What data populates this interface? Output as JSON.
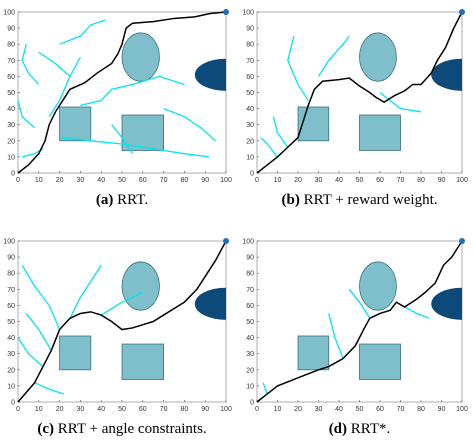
{
  "obstacles": {
    "ellipse": {
      "cx": 59,
      "cy": 72,
      "rx": 9,
      "ry": 15
    },
    "rects": [
      {
        "x": [
          20,
          35
        ],
        "y": [
          20,
          41
        ]
      },
      {
        "x": [
          50,
          70
        ],
        "y": [
          14,
          36
        ]
      }
    ],
    "half_disk": {
      "cx": 100,
      "cy": 61,
      "rx": 15,
      "ry": 10
    }
  },
  "chart_data": [
    {
      "type": "line",
      "tag": "(a)",
      "caption": "RRT.",
      "xlim": [
        0,
        100
      ],
      "ylim": [
        0,
        100
      ],
      "xticks": [
        0,
        10,
        20,
        30,
        40,
        50,
        60,
        70,
        80,
        90,
        100
      ],
      "yticks": [
        0,
        10,
        20,
        30,
        40,
        50,
        60,
        70,
        80,
        90,
        100
      ],
      "path": {
        "color": "#000000",
        "x": [
          0,
          5,
          10,
          13,
          15,
          18,
          22,
          25,
          32,
          38,
          45,
          48,
          50,
          52,
          55,
          65,
          75,
          85,
          92,
          100
        ],
        "y": [
          0,
          5,
          12,
          20,
          30,
          38,
          46,
          52,
          56,
          62,
          68,
          74,
          80,
          90,
          93,
          94,
          96,
          97,
          99,
          100
        ]
      },
      "tree": {
        "color": "#00e5ee",
        "branches": [
          {
            "x": [
              10,
              5,
              2,
              4
            ],
            "y": [
              55,
              62,
              70,
              80
            ]
          },
          {
            "x": [
              15,
              20,
              25,
              30
            ],
            "y": [
              35,
              45,
              60,
              72
            ]
          },
          {
            "x": [
              20,
              30,
              35,
              42
            ],
            "y": [
              80,
              85,
              92,
              95
            ]
          },
          {
            "x": [
              8,
              2,
              0
            ],
            "y": [
              28,
              35,
              45
            ]
          },
          {
            "x": [
              20,
              35,
              50,
              65,
              80,
              92
            ],
            "y": [
              22,
              20,
              18,
              15,
              12,
              10
            ]
          },
          {
            "x": [
              30,
              40,
              45,
              55,
              68,
              80
            ],
            "y": [
              42,
              45,
              52,
              55,
              60,
              55
            ]
          },
          {
            "x": [
              12,
              8,
              2
            ],
            "y": [
              15,
              12,
              10
            ]
          },
          {
            "x": [
              70,
              80,
              88,
              95
            ],
            "y": [
              40,
              35,
              28,
              20
            ]
          },
          {
            "x": [
              45,
              50,
              55
            ],
            "y": [
              30,
              22,
              12
            ]
          },
          {
            "x": [
              25,
              18,
              10
            ],
            "y": [
              60,
              68,
              75
            ]
          }
        ]
      }
    },
    {
      "type": "line",
      "tag": "(b)",
      "caption": "RRT + reward weight.",
      "xlim": [
        0,
        100
      ],
      "ylim": [
        0,
        100
      ],
      "xticks": [
        0,
        10,
        20,
        30,
        40,
        50,
        60,
        70,
        80,
        90,
        100
      ],
      "yticks": [
        0,
        10,
        20,
        30,
        40,
        50,
        60,
        70,
        80,
        90,
        100
      ],
      "path": {
        "color": "#000000",
        "x": [
          0,
          5,
          10,
          15,
          20,
          22,
          25,
          28,
          32,
          40,
          45,
          50,
          55,
          58,
          62,
          67,
          72,
          76,
          80,
          85,
          88,
          92,
          96,
          100
        ],
        "y": [
          0,
          5,
          10,
          16,
          22,
          30,
          42,
          52,
          57,
          58,
          59,
          54,
          50,
          47,
          44,
          48,
          51,
          55,
          55,
          62,
          70,
          78,
          90,
          100
        ]
      },
      "tree": {
        "color": "#00e5ee",
        "branches": [
          {
            "x": [
              25,
              20,
              15,
              18
            ],
            "y": [
              45,
              55,
              70,
              85
            ]
          },
          {
            "x": [
              30,
              35,
              42,
              45
            ],
            "y": [
              60,
              70,
              80,
              85
            ]
          },
          {
            "x": [
              10,
              5,
              2
            ],
            "y": [
              10,
              18,
              22
            ]
          },
          {
            "x": [
              60,
              70,
              80
            ],
            "y": [
              50,
              40,
              38
            ]
          },
          {
            "x": [
              15,
              10,
              8
            ],
            "y": [
              16,
              25,
              35
            ]
          }
        ]
      }
    },
    {
      "type": "line",
      "tag": "(c)",
      "caption": "RRT + angle constraints.",
      "xlim": [
        0,
        100
      ],
      "ylim": [
        0,
        100
      ],
      "xticks": [
        0,
        10,
        20,
        30,
        40,
        50,
        60,
        70,
        80,
        90,
        100
      ],
      "yticks": [
        0,
        10,
        20,
        30,
        40,
        50,
        60,
        70,
        80,
        90,
        100
      ],
      "path": {
        "color": "#000000",
        "x": [
          0,
          4,
          8,
          12,
          16,
          20,
          25,
          30,
          35,
          40,
          45,
          50,
          55,
          60,
          65,
          70,
          75,
          80,
          86,
          90,
          95,
          100
        ],
        "y": [
          0,
          6,
          12,
          22,
          32,
          45,
          52,
          55,
          56,
          54,
          50,
          45,
          46,
          48,
          50,
          54,
          58,
          62,
          70,
          78,
          88,
          100
        ]
      },
      "tree": {
        "color": "#00e5ee",
        "branches": [
          {
            "x": [
              20,
              15,
              8,
              2
            ],
            "y": [
              45,
              60,
              72,
              85
            ]
          },
          {
            "x": [
              25,
              30,
              35,
              40
            ],
            "y": [
              52,
              65,
              75,
              85
            ]
          },
          {
            "x": [
              12,
              5,
              0
            ],
            "y": [
              22,
              30,
              40
            ]
          },
          {
            "x": [
              8,
              15,
              22
            ],
            "y": [
              12,
              8,
              5
            ]
          },
          {
            "x": [
              40,
              50,
              60
            ],
            "y": [
              54,
              62,
              68
            ]
          },
          {
            "x": [
              16,
              10,
              4
            ],
            "y": [
              32,
              45,
              55
            ]
          }
        ]
      }
    },
    {
      "type": "line",
      "tag": "(d)",
      "caption": "RRT*.",
      "xlim": [
        0,
        100
      ],
      "ylim": [
        0,
        100
      ],
      "xticks": [
        0,
        10,
        20,
        30,
        40,
        50,
        60,
        70,
        80,
        90,
        100
      ],
      "yticks": [
        0,
        10,
        20,
        30,
        40,
        50,
        60,
        70,
        80,
        90,
        100
      ],
      "path": {
        "color": "#000000",
        "x": [
          0,
          5,
          10,
          20,
          30,
          35,
          42,
          48,
          52,
          55,
          60,
          65,
          68,
          72,
          78,
          82,
          87,
          91,
          95,
          100
        ],
        "y": [
          0,
          5,
          10,
          15,
          20,
          22,
          27,
          35,
          45,
          52,
          55,
          57,
          62,
          59,
          64,
          68,
          74,
          85,
          90,
          100
        ]
      },
      "tree": {
        "color": "#00e5ee",
        "branches": [
          {
            "x": [
              42,
              38,
              35
            ],
            "y": [
              27,
              40,
              55
            ]
          },
          {
            "x": [
              55,
              50,
              45
            ],
            "y": [
              52,
              62,
              70
            ]
          },
          {
            "x": [
              72,
              78,
              84
            ],
            "y": [
              59,
              55,
              52
            ]
          },
          {
            "x": [
              5,
              3
            ],
            "y": [
              5,
              12
            ]
          }
        ]
      }
    }
  ]
}
